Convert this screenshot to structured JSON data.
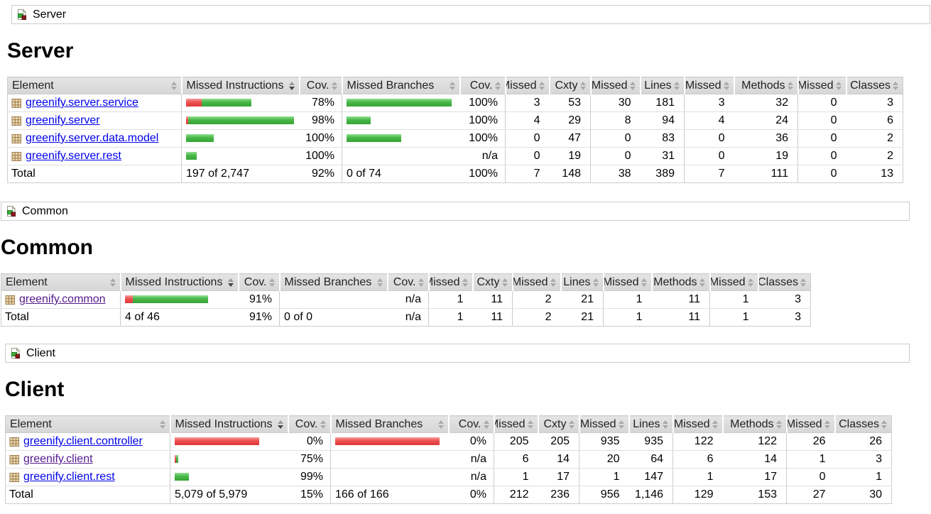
{
  "colors": {
    "link": "#0000ee",
    "link_visited": "#551a8b",
    "bar_green": "#48b648",
    "bar_red": "#ee5050",
    "header_bg": "#dcdcdc"
  },
  "table_columns": [
    {
      "label": "Element",
      "sorted": false
    },
    {
      "label": "Missed Instructions",
      "sorted": true
    },
    {
      "label": "Cov.",
      "sorted": false
    },
    {
      "label": "Missed Branches",
      "sorted": false
    },
    {
      "label": "Cov.",
      "sorted": false
    },
    {
      "label": "Missed",
      "sorted": false
    },
    {
      "label": "Cxty",
      "sorted": false
    },
    {
      "label": "Missed",
      "sorted": false
    },
    {
      "label": "Lines",
      "sorted": false
    },
    {
      "label": "Missed",
      "sorted": false
    },
    {
      "label": "Methods",
      "sorted": false
    },
    {
      "label": "Missed",
      "sorted": false
    },
    {
      "label": "Classes",
      "sorted": false
    }
  ],
  "sections": [
    {
      "id": "server",
      "breadcrumb": "Server",
      "title": "Server",
      "rows": [
        {
          "element": "greenify.server.service",
          "visited": false,
          "instr_bar": {
            "red": 22,
            "green": 70
          },
          "instr_cov": "78%",
          "branch_bar": {
            "red": 0,
            "green": 148
          },
          "branch_cov": "100%",
          "counters": [
            "3",
            "53",
            "30",
            "181",
            "3",
            "32",
            "0",
            "3"
          ]
        },
        {
          "element": "greenify.server",
          "visited": false,
          "instr_bar": {
            "red": 3,
            "green": 149
          },
          "instr_cov": "98%",
          "branch_bar": {
            "red": 0,
            "green": 34
          },
          "branch_cov": "100%",
          "counters": [
            "4",
            "29",
            "8",
            "94",
            "4",
            "24",
            "0",
            "6"
          ]
        },
        {
          "element": "greenify.server.data.model",
          "visited": false,
          "instr_bar": {
            "red": 0,
            "green": 39
          },
          "instr_cov": "100%",
          "branch_bar": {
            "red": 0,
            "green": 77
          },
          "branch_cov": "100%",
          "counters": [
            "0",
            "47",
            "0",
            "83",
            "0",
            "36",
            "0",
            "2"
          ]
        },
        {
          "element": "greenify.server.rest",
          "visited": false,
          "instr_bar": {
            "red": 0,
            "green": 15
          },
          "instr_cov": "100%",
          "branch_bar": {
            "red": 0,
            "green": 0
          },
          "branch_cov": "n/a",
          "counters": [
            "0",
            "19",
            "0",
            "31",
            "0",
            "19",
            "0",
            "2"
          ]
        }
      ],
      "total": {
        "label": "Total",
        "instr": "197 of 2,747",
        "instr_cov": "92%",
        "branch": "0 of 74",
        "branch_cov": "100%",
        "counters": [
          "7",
          "148",
          "38",
          "389",
          "7",
          "111",
          "0",
          "13"
        ]
      }
    },
    {
      "id": "common",
      "breadcrumb": "Common",
      "title": "Common",
      "rows": [
        {
          "element": "greenify.common",
          "visited": true,
          "instr_bar": {
            "red": 11,
            "green": 106
          },
          "instr_cov": "91%",
          "branch_bar": {
            "red": 0,
            "green": 0
          },
          "branch_cov": "n/a",
          "counters": [
            "1",
            "11",
            "2",
            "21",
            "1",
            "11",
            "1",
            "3"
          ]
        }
      ],
      "total": {
        "label": "Total",
        "instr": "4 of 46",
        "instr_cov": "91%",
        "branch": "0 of 0",
        "branch_cov": "n/a",
        "counters": [
          "1",
          "11",
          "2",
          "21",
          "1",
          "11",
          "1",
          "3"
        ]
      }
    },
    {
      "id": "client",
      "breadcrumb": "Client",
      "title": "Client",
      "rows": [
        {
          "element": "greenify.client.controller",
          "visited": false,
          "instr_bar": {
            "red": 119,
            "green": 0
          },
          "instr_cov": "0%",
          "branch_bar": {
            "red": 147,
            "green": 0
          },
          "branch_cov": "0%",
          "counters": [
            "205",
            "205",
            "935",
            "935",
            "122",
            "122",
            "26",
            "26"
          ]
        },
        {
          "element": "greenify.client",
          "visited": true,
          "instr_bar": {
            "red": 2,
            "green": 3
          },
          "instr_cov": "75%",
          "branch_bar": {
            "red": 0,
            "green": 0
          },
          "branch_cov": "n/a",
          "counters": [
            "6",
            "14",
            "20",
            "64",
            "6",
            "14",
            "1",
            "3"
          ]
        },
        {
          "element": "greenify.client.rest",
          "visited": false,
          "instr_bar": {
            "red": 0,
            "green": 20
          },
          "instr_cov": "99%",
          "branch_bar": {
            "red": 0,
            "green": 0
          },
          "branch_cov": "n/a",
          "counters": [
            "1",
            "17",
            "1",
            "147",
            "1",
            "17",
            "0",
            "1"
          ]
        }
      ],
      "total": {
        "label": "Total",
        "instr": "5,079 of 5,979",
        "instr_cov": "15%",
        "branch": "166 of 166",
        "branch_cov": "0%",
        "counters": [
          "212",
          "236",
          "956",
          "1,146",
          "129",
          "153",
          "27",
          "30"
        ]
      }
    }
  ]
}
